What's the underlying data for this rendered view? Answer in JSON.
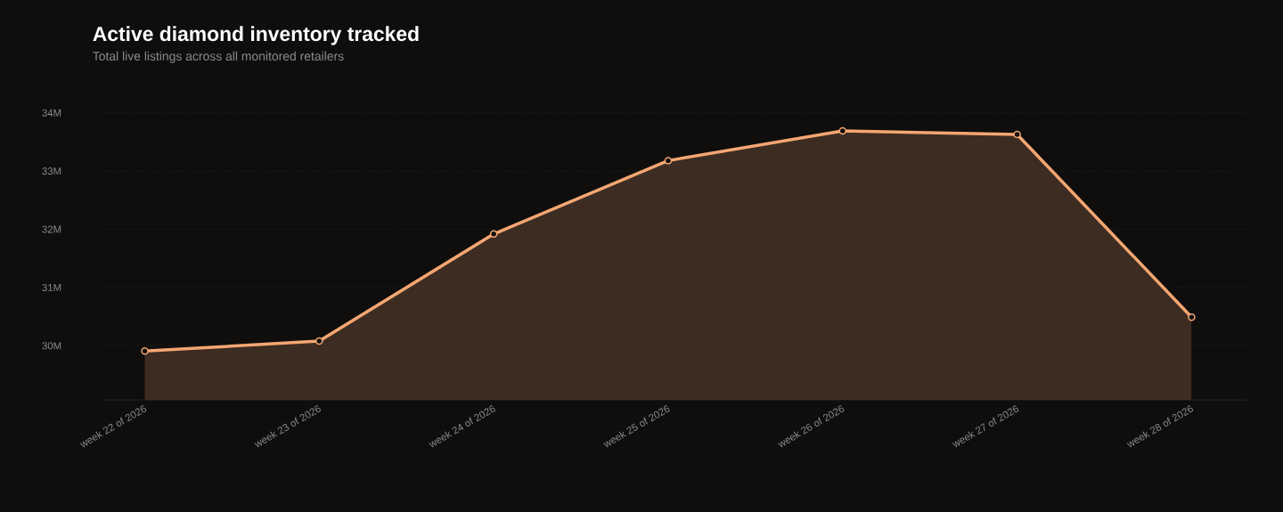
{
  "chart_data": {
    "type": "area",
    "title": "Active diamond inventory tracked",
    "subtitle": "Total live listings across all monitored retailers",
    "categories": [
      "week 22 of 2026",
      "week 23 of 2026",
      "week 24 of 2026",
      "week 25 of 2026",
      "week 26 of 2026",
      "week 27 of 2026",
      "week 28 of 2026"
    ],
    "values": [
      29.91,
      30.08,
      31.92,
      33.18,
      33.69,
      33.63,
      30.49
    ],
    "color": "#f4a672",
    "ylim": [
      29.07,
      34
    ],
    "yticks": [
      {
        "value": 30,
        "label": "30M"
      },
      {
        "value": 31,
        "label": "31M"
      },
      {
        "value": 32,
        "label": "32M"
      },
      {
        "value": 33,
        "label": "33M"
      },
      {
        "value": 34,
        "label": "34M"
      }
    ],
    "grid": "y",
    "marker": "circle"
  }
}
